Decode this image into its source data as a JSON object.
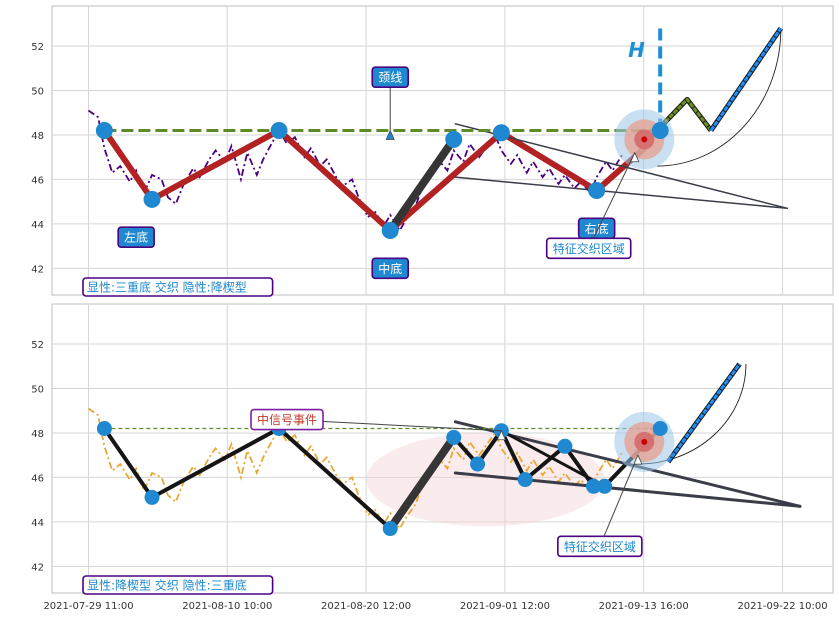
{
  "chart_data": [
    {
      "type": "line",
      "title": "",
      "ylim": [
        40.8,
        53.8
      ],
      "yticks": [
        42,
        44,
        46,
        48,
        50,
        52
      ],
      "grid": true,
      "price_series": {
        "color": "#4b0082",
        "style": "dash-dot",
        "points": [
          [
            0.0,
            49.1
          ],
          [
            0.6,
            48.8
          ],
          [
            1.0,
            47.4
          ],
          [
            1.5,
            46.3
          ],
          [
            2.0,
            46.6
          ],
          [
            2.6,
            45.9
          ],
          [
            3.0,
            46.4
          ],
          [
            3.5,
            45.4
          ],
          [
            4.0,
            46.2
          ],
          [
            4.6,
            46.0
          ],
          [
            5.0,
            45.2
          ],
          [
            5.5,
            44.9
          ],
          [
            6.0,
            45.8
          ],
          [
            6.6,
            46.5
          ],
          [
            7.0,
            46.1
          ],
          [
            7.6,
            46.9
          ],
          [
            8.0,
            47.3
          ],
          [
            8.6,
            46.8
          ],
          [
            9.0,
            47.5
          ],
          [
            9.6,
            46.0
          ],
          [
            10.0,
            47.2
          ],
          [
            10.6,
            46.2
          ],
          [
            11.0,
            46.9
          ],
          [
            11.6,
            47.7
          ],
          [
            12.0,
            48.2
          ],
          [
            12.5,
            47.6
          ],
          [
            13.0,
            47.9
          ],
          [
            13.6,
            47.0
          ],
          [
            14.0,
            47.4
          ],
          [
            14.6,
            46.6
          ],
          [
            15.0,
            46.9
          ],
          [
            15.6,
            46.1
          ],
          [
            16.0,
            45.7
          ],
          [
            16.6,
            46.0
          ],
          [
            17.0,
            45.2
          ],
          [
            17.6,
            44.3
          ],
          [
            18.0,
            44.6
          ],
          [
            18.6,
            43.9
          ],
          [
            19.0,
            44.4
          ],
          [
            19.6,
            43.7
          ],
          [
            20.0,
            44.2
          ],
          [
            20.6,
            44.8
          ],
          [
            21.0,
            45.6
          ],
          [
            21.6,
            46.2
          ],
          [
            22.0,
            46.9
          ],
          [
            22.6,
            46.4
          ],
          [
            23.0,
            47.3
          ],
          [
            23.6,
            46.8
          ],
          [
            24.0,
            47.6
          ],
          [
            24.6,
            47.0
          ],
          [
            25.0,
            47.4
          ],
          [
            25.6,
            48.0
          ],
          [
            26.0,
            47.3
          ],
          [
            26.6,
            46.7
          ],
          [
            27.0,
            47.1
          ],
          [
            27.6,
            46.3
          ],
          [
            28.0,
            46.8
          ],
          [
            28.6,
            46.1
          ],
          [
            29.0,
            46.5
          ],
          [
            29.6,
            45.8
          ],
          [
            30.0,
            46.2
          ],
          [
            30.6,
            45.6
          ],
          [
            31.0,
            45.9
          ],
          [
            31.6,
            45.4
          ],
          [
            32.0,
            46.1
          ],
          [
            32.6,
            46.8
          ],
          [
            33.0,
            46.4
          ],
          [
            33.6,
            47.1
          ]
        ]
      },
      "pattern_lines": [
        {
          "name": "triple-bottom-path",
          "color": "#b22222",
          "width": 6,
          "points": [
            [
              1,
              48.2
            ],
            [
              4,
              45.1
            ],
            [
              12,
              48.2
            ],
            [
              19,
              43.7
            ],
            [
              26,
              48.1
            ],
            [
              32,
              45.5
            ],
            [
              35,
              47.4
            ]
          ]
        },
        {
          "name": "wedge-inner-line",
          "color": "#353535",
          "width": 8,
          "points": [
            [
              19,
              43.7
            ],
            [
              23,
              47.8
            ]
          ]
        },
        {
          "name": "wedge-upper-line",
          "color": "#3a3d48",
          "width": 1.5,
          "points": [
            [
              23.1,
              48.5
            ],
            [
              44,
              44.7
            ]
          ]
        },
        {
          "name": "wedge-lower-line",
          "color": "#3a3d48",
          "width": 1.5,
          "points": [
            [
              23.1,
              46.1
            ],
            [
              44,
              44.7
            ]
          ]
        }
      ],
      "neckline": {
        "y": 48.2,
        "x_from": 1,
        "x_to": 36,
        "color": "#5f8a2a",
        "width": 3
      },
      "target_projection": [
        {
          "color": "#6b8e23",
          "points": [
            [
              35.8,
              48.2
            ],
            [
              37.7,
              49.6
            ],
            [
              39.2,
              48.2
            ]
          ]
        },
        {
          "color": "#1e90ff",
          "points": [
            [
              39.2,
              48.2
            ],
            [
              43.6,
              52.8
            ]
          ]
        }
      ],
      "target_arc": {
        "center": [
          35.8,
          52.8
        ],
        "radius_x": 7.8,
        "radius_y": 6.2
      },
      "height_marker": {
        "x": 36,
        "y_from": 48.2,
        "y_to": 52.6,
        "label": "H",
        "color": "#1f8fd3"
      },
      "pivot_points": [
        [
          1,
          48.2
        ],
        [
          4,
          45.1
        ],
        [
          12,
          48.2
        ],
        [
          19,
          43.7
        ],
        [
          23,
          47.8
        ],
        [
          26,
          48.1
        ],
        [
          32,
          45.5
        ],
        [
          36,
          48.2
        ]
      ],
      "signal_zone": {
        "x": 35,
        "y": 47.8
      },
      "annotations": [
        {
          "text": "颈线",
          "x": 19,
          "y": 50.6,
          "kind": "callout",
          "arrow_to": [
            19,
            48.2
          ]
        },
        {
          "text": "左底",
          "x": 3,
          "y": 43.4,
          "kind": "label"
        },
        {
          "text": "中底",
          "x": 19,
          "y": 42.0,
          "kind": "label"
        },
        {
          "text": "右底",
          "x": 32,
          "y": 43.8,
          "kind": "label"
        },
        {
          "text": "特征交织区域",
          "x": 31.5,
          "y": 42.9,
          "kind": "box",
          "arrow_to": [
            34.4,
            47.2
          ]
        }
      ],
      "footer_label": "显性:三重底 交织 隐性:降楔型"
    },
    {
      "type": "line",
      "title": "",
      "ylim": [
        40.8,
        53.8
      ],
      "yticks": [
        42,
        44,
        46,
        48,
        50,
        52
      ],
      "grid": true,
      "xticks": [
        "2021-07-29 11:00",
        "2021-08-10 10:00",
        "2021-08-20 12:00",
        "2021-09-01 12:00",
        "2021-09-13 16:00",
        "2021-09-22 10:00"
      ],
      "price_series": {
        "color": "#e8a835",
        "style": "dash-dot",
        "points": [
          [
            0.0,
            49.1
          ],
          [
            0.6,
            48.8
          ],
          [
            1.0,
            47.4
          ],
          [
            1.5,
            46.3
          ],
          [
            2.0,
            46.6
          ],
          [
            2.6,
            45.9
          ],
          [
            3.0,
            46.4
          ],
          [
            3.5,
            45.4
          ],
          [
            4.0,
            46.2
          ],
          [
            4.6,
            46.0
          ],
          [
            5.0,
            45.2
          ],
          [
            5.5,
            44.9
          ],
          [
            6.0,
            45.8
          ],
          [
            6.6,
            46.5
          ],
          [
            7.0,
            46.1
          ],
          [
            7.6,
            46.9
          ],
          [
            8.0,
            47.3
          ],
          [
            8.6,
            46.8
          ],
          [
            9.0,
            47.5
          ],
          [
            9.6,
            46.0
          ],
          [
            10.0,
            47.2
          ],
          [
            10.6,
            46.2
          ],
          [
            11.0,
            46.9
          ],
          [
            11.6,
            47.7
          ],
          [
            12.0,
            48.2
          ],
          [
            12.5,
            47.6
          ],
          [
            13.0,
            47.9
          ],
          [
            13.6,
            47.0
          ],
          [
            14.0,
            47.4
          ],
          [
            14.6,
            46.6
          ],
          [
            15.0,
            46.9
          ],
          [
            15.6,
            46.1
          ],
          [
            16.0,
            45.7
          ],
          [
            16.6,
            46.0
          ],
          [
            17.0,
            45.2
          ],
          [
            17.6,
            44.3
          ],
          [
            18.0,
            44.6
          ],
          [
            18.6,
            43.9
          ],
          [
            19.0,
            44.4
          ],
          [
            19.6,
            43.7
          ],
          [
            20.0,
            44.2
          ],
          [
            20.6,
            44.8
          ],
          [
            21.0,
            45.6
          ],
          [
            21.6,
            46.2
          ],
          [
            22.0,
            46.9
          ],
          [
            22.6,
            46.4
          ],
          [
            23.0,
            47.3
          ],
          [
            23.6,
            46.8
          ],
          [
            24.0,
            47.6
          ],
          [
            24.6,
            47.0
          ],
          [
            25.0,
            47.4
          ],
          [
            25.6,
            48.0
          ],
          [
            26.0,
            47.3
          ],
          [
            26.6,
            46.7
          ],
          [
            27.0,
            47.1
          ],
          [
            27.6,
            46.3
          ],
          [
            28.0,
            46.8
          ],
          [
            28.6,
            46.1
          ],
          [
            29.0,
            46.5
          ],
          [
            29.6,
            45.8
          ],
          [
            30.0,
            46.2
          ],
          [
            30.6,
            45.6
          ],
          [
            31.0,
            45.9
          ],
          [
            31.6,
            45.4
          ],
          [
            32.0,
            46.1
          ],
          [
            32.6,
            46.8
          ],
          [
            33.0,
            46.4
          ],
          [
            33.6,
            47.1
          ]
        ]
      },
      "pattern_lines": [
        {
          "name": "wedge-zigzag-path",
          "color": "#151515",
          "width": 4,
          "points": [
            [
              1,
              48.2
            ],
            [
              4,
              45.1
            ],
            [
              12,
              48.2
            ],
            [
              19,
              43.7
            ],
            [
              23,
              47.8
            ],
            [
              24.5,
              46.6
            ],
            [
              26,
              48.1
            ],
            [
              27.5,
              45.9
            ],
            [
              30,
              47.4
            ],
            [
              31.8,
              45.6
            ],
            [
              32.5,
              45.6
            ],
            [
              36,
              48.2
            ]
          ]
        },
        {
          "name": "wedge-inner-line",
          "color": "#353535",
          "width": 8,
          "points": [
            [
              19,
              43.7
            ],
            [
              23,
              47.8
            ]
          ]
        },
        {
          "name": "wedge-upper-line",
          "color": "#3a3d48",
          "width": 3,
          "points": [
            [
              23.1,
              48.5
            ],
            [
              44.8,
              44.7
            ]
          ]
        },
        {
          "name": "wedge-lower-line",
          "color": "#3a3d48",
          "width": 3,
          "points": [
            [
              23.1,
              46.2
            ],
            [
              44.8,
              44.7
            ]
          ]
        },
        {
          "name": "black-segment",
          "color": "#151515",
          "width": 3,
          "points": [
            [
              26,
              48.1
            ],
            [
              32.5,
              45.6
            ]
          ]
        }
      ],
      "neckline": {
        "y": 48.2,
        "x_from": 1,
        "x_to": 36,
        "color": "#5f8a2a",
        "width": 1.2
      },
      "target_projection": [
        {
          "color": "#1e90ff",
          "points": [
            [
              36.5,
              46.7
            ],
            [
              41,
              51.1
            ]
          ]
        }
      ],
      "target_arc": {
        "center": [
          34.6,
          51.1
        ],
        "radius_x": 6.8,
        "radius_y": 4.5
      },
      "pivot_points": [
        [
          1,
          48.2
        ],
        [
          4,
          45.1
        ],
        [
          12,
          48.2
        ],
        [
          19,
          43.7
        ],
        [
          23,
          47.8
        ],
        [
          24.5,
          46.6
        ],
        [
          26,
          48.1
        ],
        [
          27.5,
          45.9
        ],
        [
          30,
          47.4
        ],
        [
          31.8,
          45.6
        ],
        [
          32.5,
          45.6
        ],
        [
          36,
          48.2
        ]
      ],
      "signal_zone": {
        "x": 35,
        "y": 47.6
      },
      "shaded_region": {
        "cx": 25,
        "cy": 45.9,
        "rx": 7.5,
        "ry": 2.1
      },
      "annotations": [
        {
          "text": "中信号事件",
          "x": 12.5,
          "y": 48.6,
          "kind": "box",
          "arrow_to": [
            26,
            48.1
          ]
        },
        {
          "text": "特征交织区域",
          "x": 32.2,
          "y": 42.9,
          "kind": "box",
          "arrow_to": [
            34.6,
            47.0
          ]
        }
      ],
      "footer_label": "显性:降楔型 交织 隐性:三重底"
    }
  ]
}
